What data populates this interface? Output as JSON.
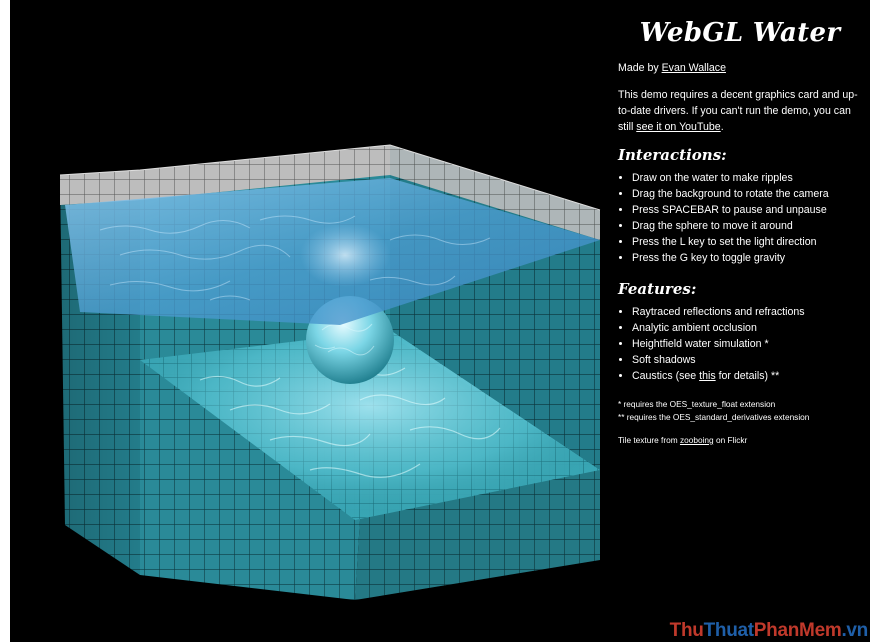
{
  "panel": {
    "title": "WebGL Water",
    "made_by": "Made by",
    "author": "Evan Wallace",
    "intro": "This demo requires a decent graphics card and up-to-date drivers. If you can't run the demo, you can still",
    "youtube_link": "see it on YouTube",
    "intro_end": ".",
    "interactions_heading": "Interactions:",
    "interactions": [
      "Draw on the water to make ripples",
      "Drag the background to rotate the camera",
      "Press SPACEBAR to pause and unpause",
      "Drag the sphere to move it around",
      "Press the L key to set the light direction",
      "Press the G key to toggle gravity"
    ],
    "features_heading": "Features:",
    "features": [
      "Raytraced reflections and refractions",
      "Analytic ambient occlusion",
      "Heightfield water simulation *",
      "Soft shadows"
    ],
    "caustics_pre": "Caustics (see",
    "caustics_link": "this",
    "caustics_post": "for details) **",
    "note1": "* requires the OES_texture_float extension",
    "note2": "** requires the OES_standard_derivatives extension",
    "credit_pre": "Tile texture from",
    "credit_link": "zooboing",
    "credit_post": "on Flickr"
  },
  "watermark": {
    "part1": "Thu",
    "part2": "Thuat",
    "part3": "PhanMem",
    "part4": ".vn"
  },
  "colors": {
    "background": "#000000",
    "tile_wall": "#2a8a98",
    "tile_wall_dark": "#1c6b78",
    "tile_above_water": "#b8b8b8",
    "water": "#5aa8d8",
    "sphere": "#7fd8e8",
    "grout": "#0e3d44"
  }
}
